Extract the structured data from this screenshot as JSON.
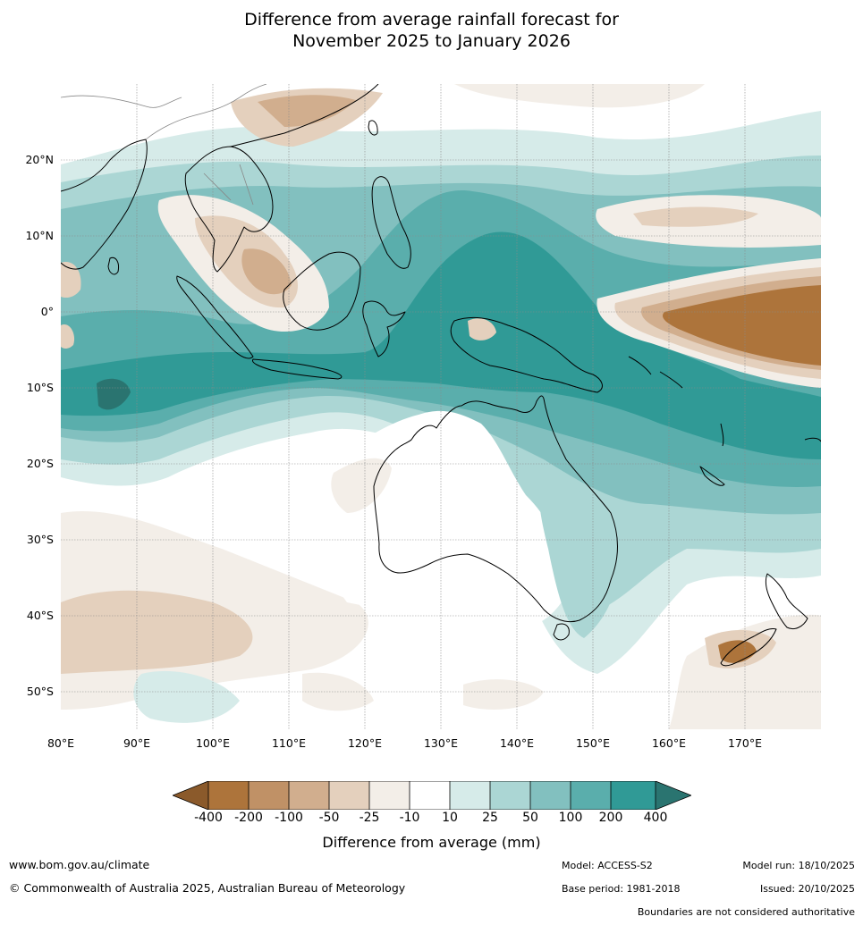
{
  "title_line1": "Difference from average rainfall forecast for",
  "title_line2": "November 2025 to January 2026",
  "map": {
    "lat_labels": [
      "20°N",
      "10°N",
      "0°",
      "10°S",
      "20°S",
      "30°S",
      "40°S",
      "50°S"
    ],
    "lon_labels": [
      "80°E",
      "90°E",
      "100°E",
      "110°E",
      "120°E",
      "130°E",
      "140°E",
      "150°E",
      "160°E",
      "170°E"
    ],
    "colors": {
      "dry_400_plus": "#8b5a2b",
      "dry_200_400": "#ad743b",
      "dry_100_200": "#c09166",
      "dry_50_100": "#d1ae8e",
      "dry_25_50": "#e4d0bd",
      "dry_10_25": "#f3eee8",
      "neutral": "#ffffff",
      "wet_10_25": "#d6ebe9",
      "wet_25_50": "#abd6d4",
      "wet_50_100": "#82c0bf",
      "wet_100_200": "#5aaeac",
      "wet_200_400": "#309a96",
      "wet_400_plus": "#2a7470"
    }
  },
  "colorbar": {
    "ticks": [
      "-400",
      "-200",
      "-100",
      "-50",
      "-25",
      "-10",
      "10",
      "25",
      "50",
      "100",
      "200",
      "400"
    ],
    "label": "Difference from average (mm)"
  },
  "footer": {
    "website": "www.bom.gov.au/climate",
    "copyright": "© Commonwealth of Australia 2025, Australian Bureau of Meteorology",
    "model": "Model: ACCESS-S2",
    "base_period": "Base period: 1981-2018",
    "model_run": "Model run: 18/10/2025",
    "issued": "Issued: 20/10/2025",
    "disclaimer": "Boundaries are not considered authoritative"
  }
}
